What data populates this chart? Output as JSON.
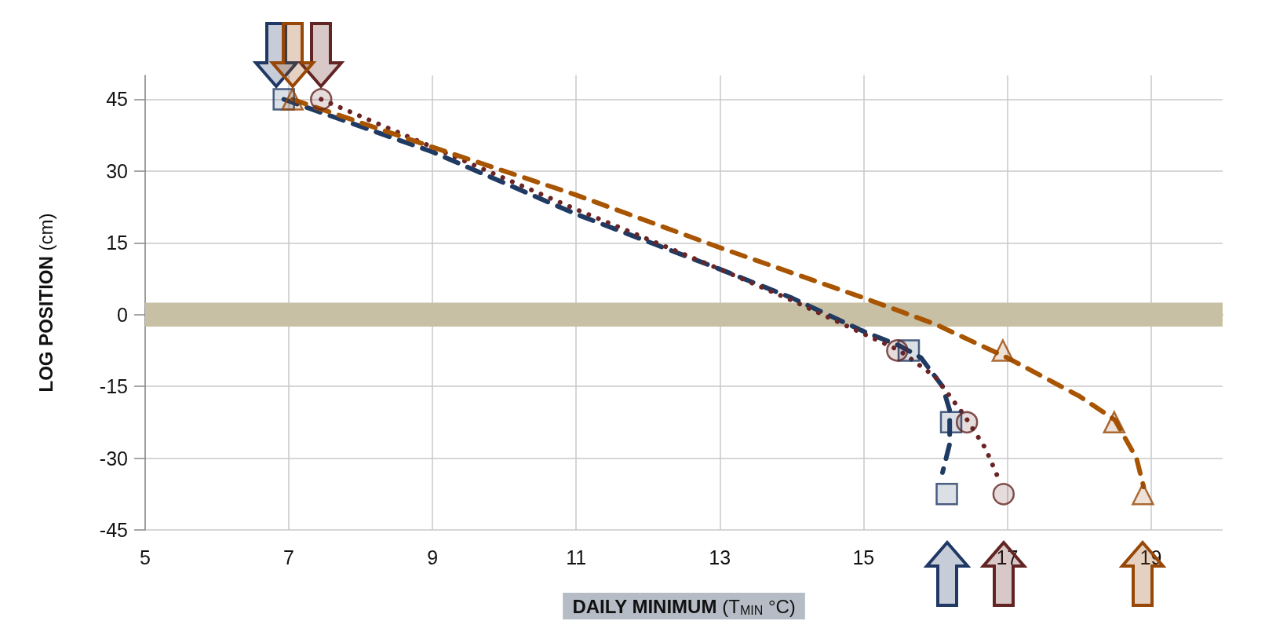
{
  "chart_data": {
    "type": "scatter",
    "xlabel": "DAILY MINIMUM (T$_{MIN}$ °C)",
    "ylabel": "LOG POSITION (cm)",
    "xlim": [
      5,
      20
    ],
    "xticks": [
      5,
      7,
      9,
      11,
      13,
      15,
      17,
      19
    ],
    "ylim": [
      -45,
      50
    ],
    "yticks": [
      -45,
      -30,
      -15,
      0,
      15,
      30,
      45
    ],
    "grid": true,
    "bands": [
      {
        "axis": "y",
        "from": -2.5,
        "to": 2.5,
        "color": "#c8c0a4"
      }
    ],
    "series": [
      {
        "type": "line",
        "line_style": "dashed",
        "marker": "none",
        "color": "#1f3b63",
        "x": [
          6.93,
          9,
          11,
          13,
          14,
          15,
          15.5,
          15.8,
          16.1,
          16.2,
          16.2,
          16.1
        ],
        "values": [
          45,
          34,
          21,
          9.5,
          3.5,
          -3.5,
          -6.5,
          -9,
          -15,
          -20,
          -27,
          -33
        ]
      },
      {
        "type": "line",
        "line_style": "dotted",
        "marker": "none",
        "color": "#6b2424",
        "x": [
          7.45,
          9,
          11,
          13,
          14,
          15,
          15.5,
          16,
          16.4,
          16.7,
          16.9
        ],
        "values": [
          45,
          35,
          22,
          9.5,
          3,
          -4,
          -7.5,
          -13,
          -21,
          -28,
          -35
        ]
      },
      {
        "type": "line",
        "line_style": "dashed",
        "marker": "none",
        "color": "#a85400",
        "x": [
          7.05,
          9,
          11,
          13,
          15,
          16,
          17,
          18,
          18.5,
          18.8,
          18.9
        ],
        "values": [
          45,
          35,
          25,
          14,
          3.5,
          -2,
          -9,
          -17,
          -22,
          -30,
          -36
        ]
      },
      {
        "marker": "square",
        "color": "#1f3864",
        "x": [
          6.93,
          15.63,
          16.22,
          16.16
        ],
        "values": [
          45,
          -7.5,
          -22.5,
          -37.5
        ]
      },
      {
        "marker": "circle",
        "color": "#632523",
        "x": [
          7.45,
          15.47,
          16.44,
          16.95
        ],
        "values": [
          45,
          -7.5,
          -22.5,
          -37.5
        ]
      },
      {
        "marker": "triangle",
        "color": "#974706",
        "x": [
          7.05,
          16.94,
          18.49,
          18.89
        ],
        "values": [
          45,
          -7.5,
          -22.5,
          -37.5
        ]
      }
    ]
  }
}
